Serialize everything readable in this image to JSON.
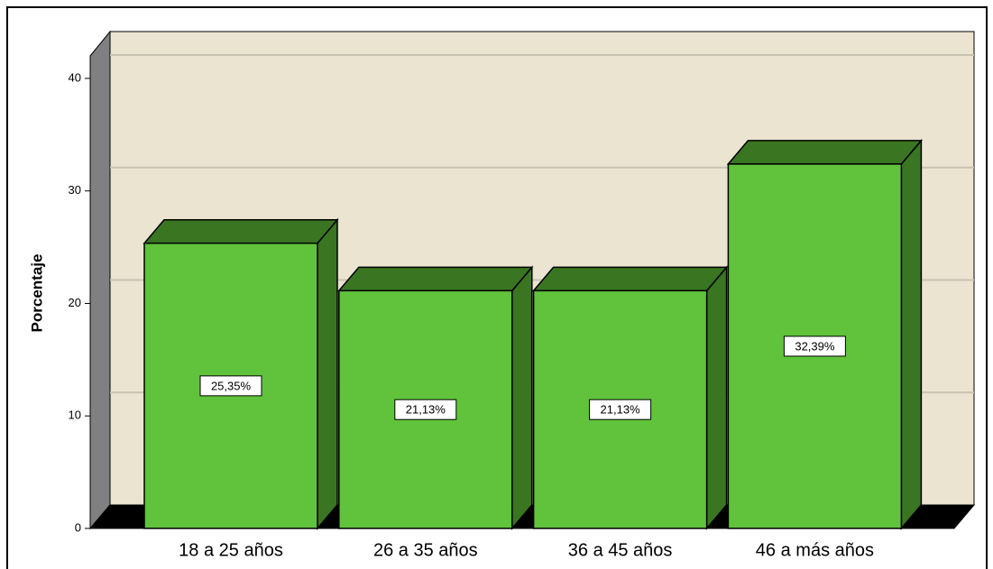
{
  "chart_data": {
    "type": "bar",
    "y_label": "Porcentaje",
    "categories": [
      "18 a 25 años",
      "26 a 35 años",
      "36 a 45 años",
      "46 a más años"
    ],
    "values": [
      25.35,
      21.13,
      21.13,
      32.39
    ],
    "value_labels": [
      "25,35%",
      "21,13%",
      "21,13%",
      "32,39%"
    ],
    "color": "#60c33b",
    "ylim": [
      0,
      42
    ],
    "yticks": [
      0,
      10,
      20,
      30,
      40
    ],
    "grid": true
  }
}
